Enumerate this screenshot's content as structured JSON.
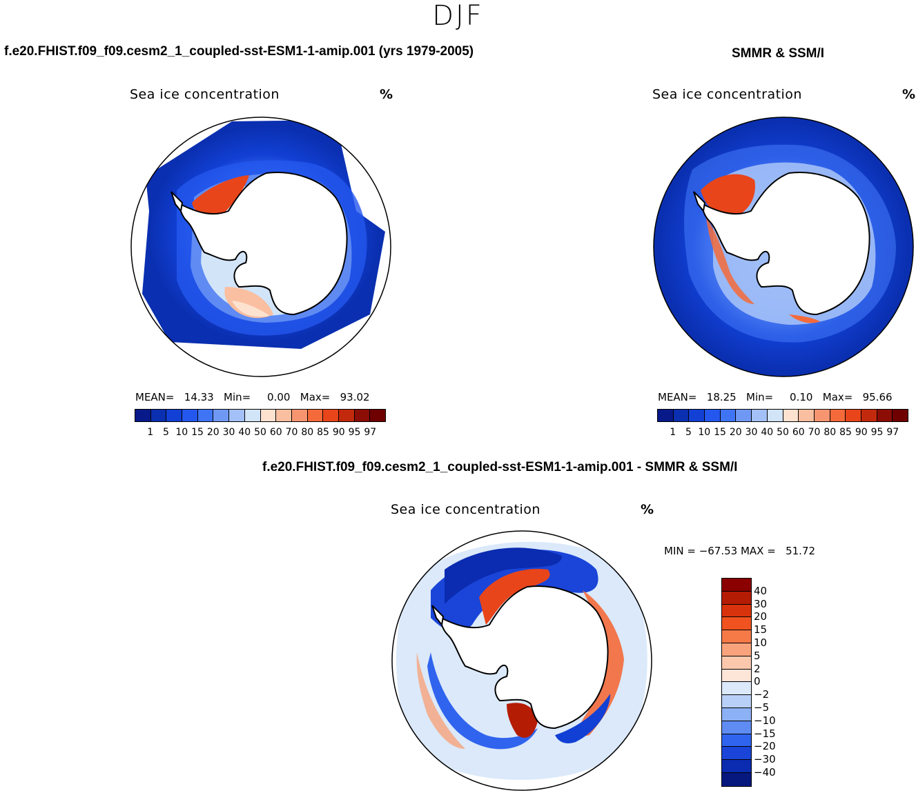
{
  "season": "DJF",
  "panels": [
    {
      "title": "f.e20.FHIST.f09_f09.cesm2_1_coupled-sst-ESM1-1-amip.001 (yrs 1979-2005)",
      "variable": "Sea ice concentration",
      "unit": "%",
      "stats": "MEAN=   14.33   Min=     0.00   Max=   93.02",
      "region": "Antarctic"
    },
    {
      "title": "SMMR & SSM/I",
      "variable": "Sea ice concentration",
      "unit": "%",
      "stats": "MEAN=   18.25   Min=     0.10   Max=   95.66",
      "region": "Antarctic"
    }
  ],
  "colorbar": {
    "labels": [
      "1",
      "5",
      "10",
      "15",
      "20",
      "30",
      "40",
      "50",
      "60",
      "70",
      "80",
      "85",
      "90",
      "95",
      "97"
    ],
    "colors": [
      "#08198a",
      "#0a2fb0",
      "#1240d4",
      "#2457ee",
      "#3f75f5",
      "#6f98f5",
      "#a3c0f7",
      "#d2e4f8",
      "#fde2d0",
      "#f9bfa0",
      "#f69570",
      "#f46a3a",
      "#e8451a",
      "#c3290c",
      "#8b0d06",
      "#6e0000"
    ]
  },
  "diff_panel": {
    "title": "f.e20.FHIST.f09_f09.cesm2_1_coupled-sst-ESM1-1-amip.001 - SMMR & SSM/I",
    "variable": "Sea ice concentration",
    "unit": "%",
    "stats": "MIN = −67.53 MAX =   51.72",
    "labels": [
      "40",
      "30",
      "20",
      "15",
      "10",
      "5",
      "2",
      "0",
      "−2",
      "−5",
      "−10",
      "−15",
      "−20",
      "−30",
      "−40"
    ],
    "colors": [
      "#8b0000",
      "#b51c04",
      "#d8330c",
      "#f0531f",
      "#f57a48",
      "#f8a37c",
      "#fbc8ad",
      "#fde6d8",
      "#dbe9fa",
      "#b8d0f8",
      "#8cb1f5",
      "#5f8cf2",
      "#3064ee",
      "#1a45d8",
      "#0b2cb0",
      "#06187e"
    ]
  }
}
